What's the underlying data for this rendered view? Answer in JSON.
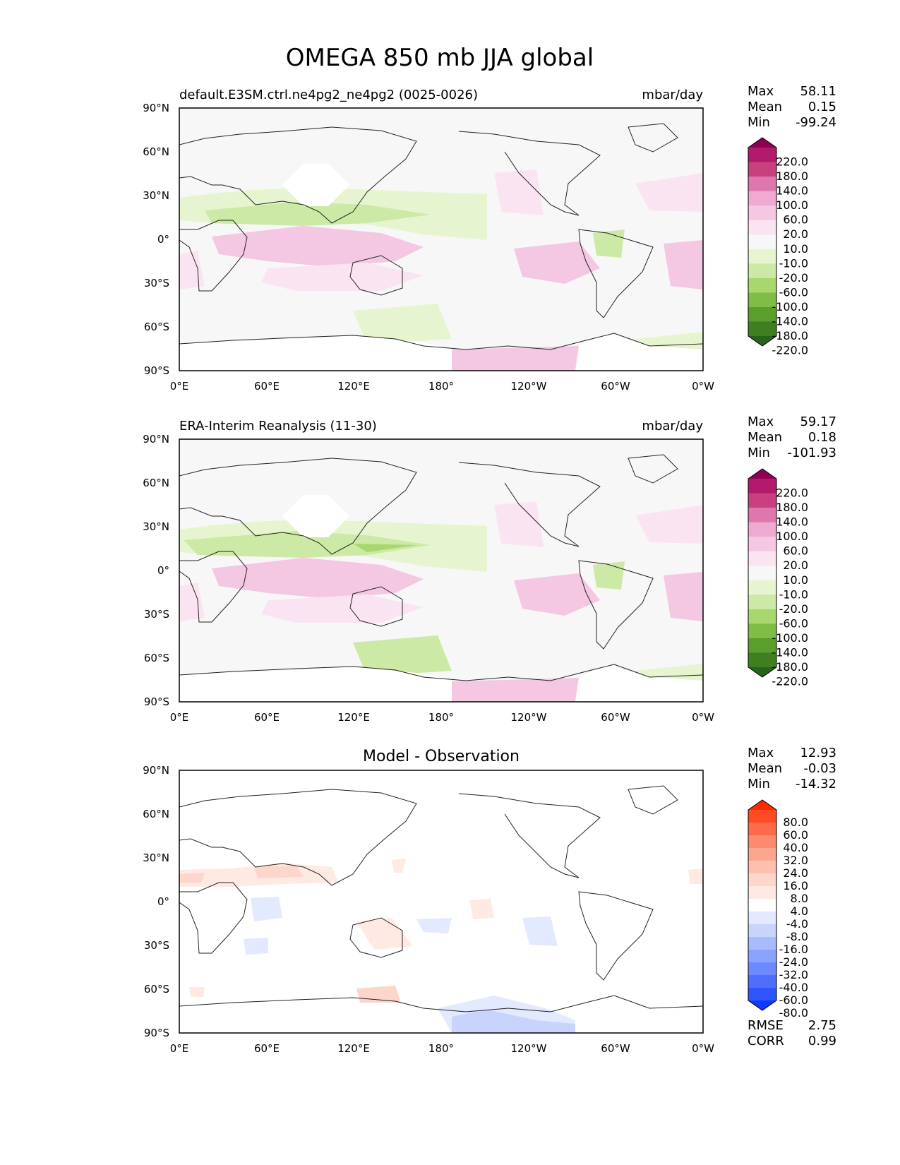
{
  "figure_title": "OMEGA 850 mb JJA global",
  "x_ticks": [
    "0°E",
    "60°E",
    "120°E",
    "180°",
    "120°W",
    "60°W",
    "0°W"
  ],
  "y_ticks": [
    "90°N",
    "60°N",
    "30°N",
    "0°",
    "30°S",
    "60°S",
    "90°S"
  ],
  "stat_labels": {
    "max": "Max",
    "mean": "Mean",
    "min": "Min",
    "rmse": "RMSE",
    "corr": "CORR"
  },
  "panels": [
    {
      "title_left": "default.E3SM.ctrl.ne4pg2_ne4pg2 (0025-0026)",
      "title_center": "",
      "units": "mbar/day",
      "stats": {
        "max": "58.11",
        "mean": "0.15",
        "min": "-99.24"
      },
      "colorbar": {
        "labels": [
          "220.0",
          "180.0",
          "140.0",
          "100.0",
          "60.0",
          "20.0",
          "10.0",
          "-10.0",
          "-20.0",
          "-60.0",
          "-100.0",
          "-140.0",
          "-180.0",
          "-220.0"
        ],
        "colors": [
          "#8e0152",
          "#b3196c",
          "#c7417f",
          "#de77ae",
          "#eeaad0",
          "#f4c7e3",
          "#fbe4f1",
          "#f7f7f7",
          "#e6f5d0",
          "#cde9a6",
          "#a8d76d",
          "#80bd46",
          "#5a9e2c",
          "#3f7f21",
          "#276419"
        ]
      }
    },
    {
      "title_left": "ERA-Interim Reanalysis (11-30)",
      "title_center": "",
      "units": "mbar/day",
      "stats": {
        "max": "59.17",
        "mean": "0.18",
        "min": "-101.93"
      },
      "colorbar": {
        "labels": [
          "220.0",
          "180.0",
          "140.0",
          "100.0",
          "60.0",
          "20.0",
          "10.0",
          "-10.0",
          "-20.0",
          "-60.0",
          "-100.0",
          "-140.0",
          "-180.0",
          "-220.0"
        ],
        "colors": [
          "#8e0152",
          "#b3196c",
          "#c7417f",
          "#de77ae",
          "#eeaad0",
          "#f4c7e3",
          "#fbe4f1",
          "#f7f7f7",
          "#e6f5d0",
          "#cde9a6",
          "#a8d76d",
          "#80bd46",
          "#5a9e2c",
          "#3f7f21",
          "#276419"
        ]
      }
    },
    {
      "title_left": "",
      "title_center": "Model - Observation",
      "units": "",
      "stats": {
        "max": "12.93",
        "mean": "-0.03",
        "min": "-14.32",
        "rmse": "2.75",
        "corr": "0.99"
      },
      "colorbar": {
        "labels": [
          "80.0",
          "60.0",
          "40.0",
          "32.0",
          "24.0",
          "16.0",
          "8.0",
          "4.0",
          "-4.0",
          "-8.0",
          "-16.0",
          "-24.0",
          "-32.0",
          "-40.0",
          "-60.0",
          "-80.0"
        ],
        "colors": [
          "#ff2a00",
          "#fe4b26",
          "#fd6b4b",
          "#fc8a6f",
          "#fca58f",
          "#fcbfb0",
          "#fdd6cb",
          "#fee9e3",
          "#ffffff",
          "#e3e9fe",
          "#c9d4fd",
          "#a9bbfd",
          "#8ca3fd",
          "#6c89fd",
          "#4e6ffc",
          "#2f56fc",
          "#0d3bfb"
        ]
      }
    }
  ]
}
